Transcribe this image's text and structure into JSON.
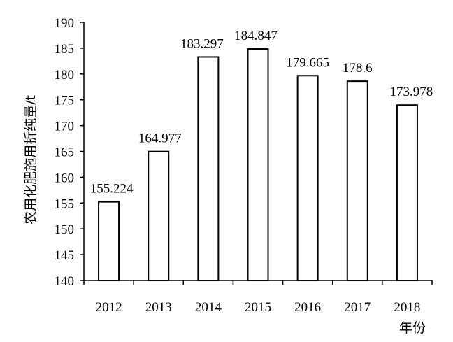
{
  "chart_data": {
    "type": "bar",
    "categories": [
      "2012",
      "2013",
      "2014",
      "2015",
      "2016",
      "2017",
      "2018"
    ],
    "values": [
      155.224,
      164.977,
      183.297,
      184.847,
      179.665,
      178.6,
      173.978
    ],
    "data_labels": [
      "155.224",
      "164.977",
      "183.297",
      "184.847",
      "179.665",
      "178.6",
      "173.978"
    ],
    "xlabel": "年份",
    "ylabel": "农用化肥施用折纯量/t",
    "ylim": [
      140,
      190
    ],
    "yticks": [
      140,
      145,
      150,
      155,
      160,
      165,
      170,
      175,
      180,
      185,
      190
    ],
    "grid": false,
    "legend": "none",
    "colors": {
      "bar_fill": "#ffffff",
      "bar_stroke": "#000000",
      "axis": "#000000"
    }
  }
}
